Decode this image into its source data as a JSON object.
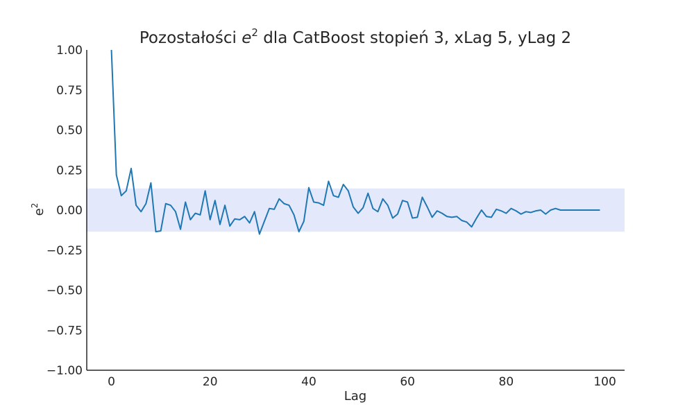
{
  "chart_data": {
    "type": "line",
    "title_prefix": "Pozostałości ",
    "title_var": "e",
    "title_sup": "2",
    "title_suffix": " dla CatBoost stopień 3, xLag 5, yLag 2",
    "xlabel": "Lag",
    "ylabel_base": "e",
    "ylabel_sup": "2",
    "xlim": [
      -5,
      104
    ],
    "ylim": [
      -1.0,
      1.0
    ],
    "x_ticks": [
      0,
      20,
      40,
      60,
      80,
      100
    ],
    "x_tick_labels": [
      "0",
      "20",
      "40",
      "60",
      "80",
      "100"
    ],
    "y_ticks": [
      1.0,
      0.75,
      0.5,
      0.25,
      0.0,
      -0.25,
      -0.5,
      -0.75,
      -1.0
    ],
    "y_tick_labels": [
      "1.00",
      "0.75",
      "0.50",
      "0.25",
      "0.00",
      "−0.25",
      "−0.50",
      "−0.75",
      "−1.00"
    ],
    "grid": false,
    "confidence_band": [
      -0.135,
      0.135
    ],
    "band_color": "#e3e9fb",
    "line_color": "#1f77b4",
    "series": [
      {
        "x": [
          0,
          1,
          2,
          3,
          4,
          5,
          6,
          7,
          8,
          9,
          10,
          11,
          12,
          13,
          14,
          15,
          16,
          17,
          18,
          19,
          20,
          21,
          22,
          23,
          24,
          25,
          26,
          27,
          28,
          29,
          30,
          31,
          32,
          33,
          34,
          35,
          36,
          37,
          38,
          39,
          40,
          41,
          42,
          43,
          44,
          45,
          46,
          47,
          48,
          49,
          50,
          51,
          52,
          53,
          54,
          55,
          56,
          57,
          58,
          59,
          60,
          61,
          62,
          63,
          64,
          65,
          66,
          67,
          68,
          69,
          70,
          71,
          72,
          73,
          74,
          75,
          76,
          77,
          78,
          79,
          80,
          81,
          82,
          83,
          84,
          85,
          86,
          87,
          88,
          89,
          90,
          91,
          92,
          93,
          94,
          95,
          96,
          97,
          98,
          99
        ],
        "values": [
          1.0,
          0.22,
          0.09,
          0.12,
          0.26,
          0.03,
          -0.01,
          0.04,
          0.17,
          -0.135,
          -0.13,
          0.04,
          0.03,
          -0.01,
          -0.12,
          0.05,
          -0.06,
          -0.02,
          -0.03,
          0.12,
          -0.06,
          0.06,
          -0.09,
          0.03,
          -0.1,
          -0.055,
          -0.06,
          -0.04,
          -0.08,
          -0.01,
          -0.15,
          -0.07,
          0.01,
          0.005,
          0.07,
          0.04,
          0.03,
          -0.03,
          -0.135,
          -0.07,
          0.14,
          0.05,
          0.045,
          0.03,
          0.18,
          0.09,
          0.08,
          0.16,
          0.12,
          0.02,
          -0.02,
          0.015,
          0.105,
          0.01,
          -0.01,
          0.07,
          0.03,
          -0.05,
          -0.025,
          0.06,
          0.05,
          -0.05,
          -0.045,
          0.08,
          0.02,
          -0.045,
          -0.005,
          -0.02,
          -0.04,
          -0.045,
          -0.04,
          -0.065,
          -0.075,
          -0.105,
          -0.05,
          0.0,
          -0.04,
          -0.045,
          0.005,
          -0.005,
          -0.02,
          0.01,
          -0.005,
          -0.025,
          -0.01,
          -0.015,
          -0.005,
          0.0,
          -0.025,
          0.0,
          0.01,
          0.0,
          0.0,
          0.0,
          0.0,
          0.0,
          0.0,
          0.0,
          0.0,
          0.0
        ]
      }
    ]
  }
}
